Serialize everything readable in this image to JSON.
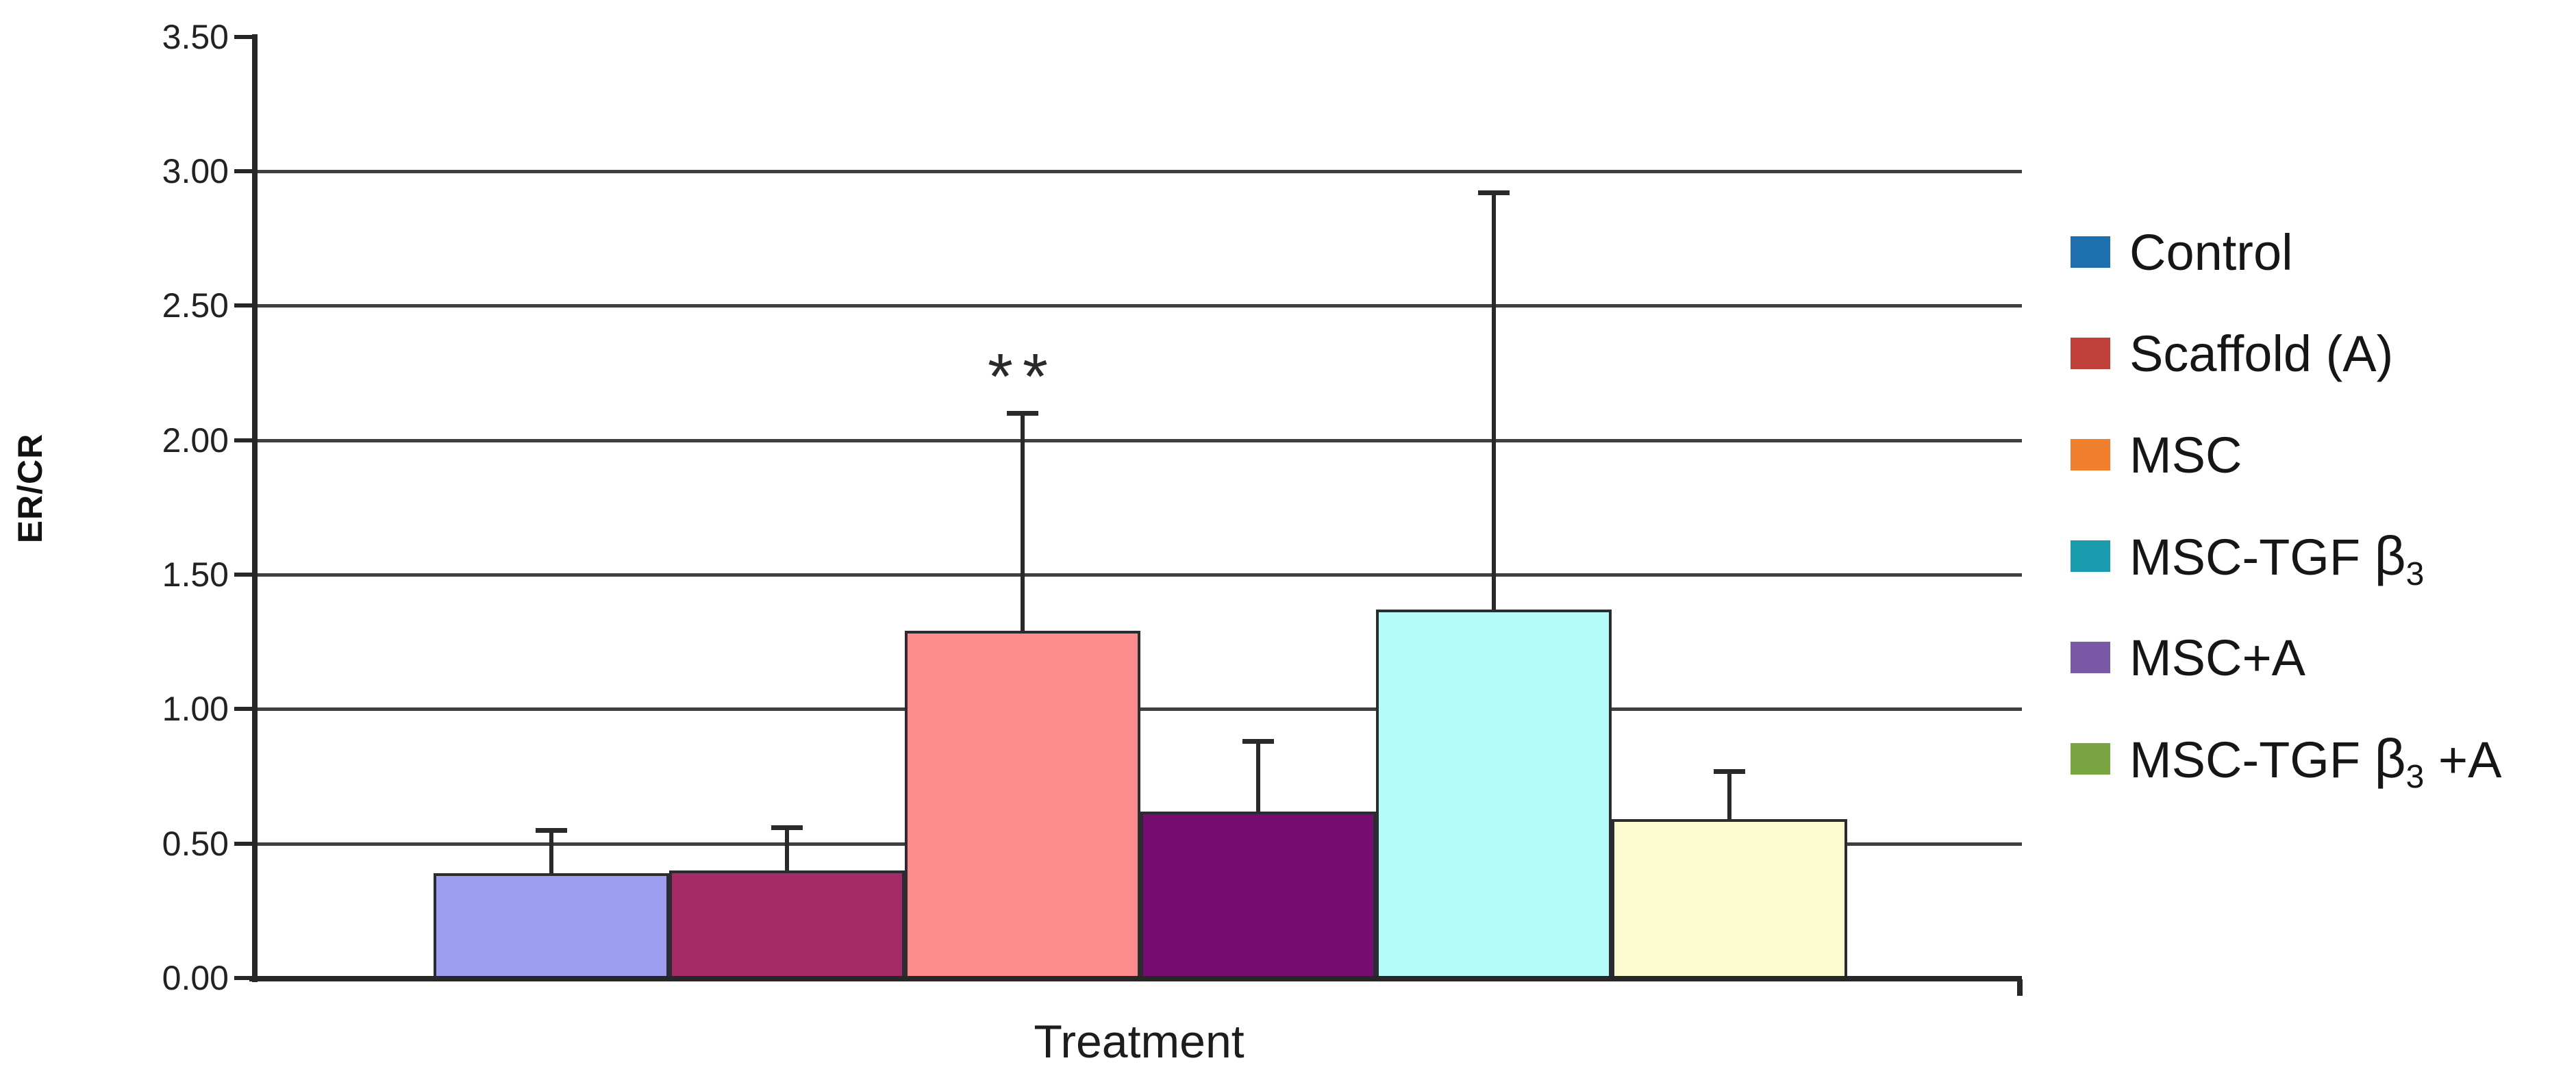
{
  "chart_data": {
    "type": "bar",
    "title": "",
    "xlabel": "Treatment",
    "ylabel": "ER/CR",
    "ylim": [
      0,
      3.5
    ],
    "ytick_step": 0.5,
    "ytick_values": [
      0,
      0.5,
      1.0,
      1.5,
      2.0,
      2.5,
      3.0,
      3.5
    ],
    "ytick_labels": [
      "0.00",
      "0.50",
      "1.00",
      "1.50",
      "2.00",
      "2.50",
      "3.00",
      "3.50"
    ],
    "gridline_values": [
      0.5,
      1.0,
      1.5,
      2.0,
      2.5,
      3.0
    ],
    "grid": true,
    "categories": [
      "Control",
      "Scaffold (A)",
      "MSC",
      "MSC-TGF β3",
      "MSC+A",
      "MSC-TGF β3 +A"
    ],
    "values": [
      0.39,
      0.4,
      1.29,
      0.62,
      1.37,
      0.59
    ],
    "error_plus": [
      0.16,
      0.16,
      0.81,
      0.26,
      1.55,
      0.18
    ],
    "bar_fill_colors": [
      "#9e9ef0",
      "#a52a68",
      "#fc8b8b",
      "#760b70",
      "#b5fbf9",
      "#fbfbd0"
    ],
    "bar_edge_color": "#2b2b31",
    "error_bar_color": "#2a2a2a",
    "gridline_color": "#3f3f3f",
    "axis_color": "#272727",
    "annotation": {
      "text": "**",
      "category": "MSC"
    },
    "legend_position": "right"
  },
  "legend": {
    "items": [
      {
        "label": "Control",
        "color": "#1e6fad",
        "prefix": "Control"
      },
      {
        "label": "Scaffold (A)",
        "color": "#bf3f39",
        "prefix": "Scaffold (A)"
      },
      {
        "label": "MSC",
        "color": "#ef7f2c",
        "prefix": "MSC"
      },
      {
        "label": "MSC-TGF β3",
        "color": "#1b9cae",
        "prefix": "MSC-TGF ",
        "beta": "β",
        "beta_sub": "3",
        "suffix": ""
      },
      {
        "label": "MSC+A",
        "color": "#7b58a6",
        "prefix": "MSC+A"
      },
      {
        "label": "MSC-TGF β3 +A",
        "color": "#79a542",
        "prefix": "MSC-TGF ",
        "beta": "β",
        "beta_sub": "3",
        "suffix": " +A"
      }
    ]
  }
}
